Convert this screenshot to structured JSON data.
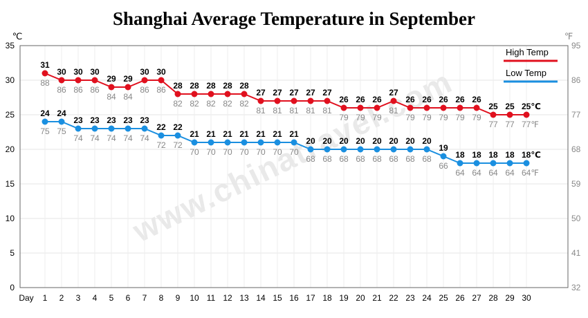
{
  "chart_data": {
    "type": "line",
    "title": "Shanghai Average Temperature in September",
    "x_label": "Day",
    "x": [
      1,
      2,
      3,
      4,
      5,
      6,
      7,
      8,
      9,
      10,
      11,
      12,
      13,
      14,
      15,
      16,
      17,
      18,
      19,
      20,
      21,
      22,
      23,
      24,
      25,
      26,
      27,
      28,
      29,
      30
    ],
    "y_left": {
      "unit": "℃",
      "min": 0,
      "max": 35,
      "ticks": [
        0,
        5,
        10,
        15,
        20,
        25,
        30,
        35
      ]
    },
    "y_right": {
      "unit": "℉",
      "ticks": [
        32,
        41,
        50,
        59,
        68,
        77,
        86,
        95
      ]
    },
    "grid": true,
    "legend_position": "top-right",
    "series": [
      {
        "name": "High Temp",
        "color": "#e0101e",
        "values_c": [
          31,
          30,
          30,
          30,
          29,
          29,
          30,
          30,
          28,
          28,
          28,
          28,
          28,
          27,
          27,
          27,
          27,
          27,
          26,
          26,
          26,
          27,
          26,
          26,
          26,
          26,
          26,
          25,
          25,
          25
        ],
        "values_f": [
          88,
          86,
          86,
          86,
          84,
          84,
          86,
          86,
          82,
          82,
          82,
          82,
          82,
          81,
          81,
          81,
          81,
          81,
          79,
          79,
          79,
          81,
          79,
          79,
          79,
          79,
          79,
          77,
          77,
          77
        ],
        "end_unit_c": "℃",
        "end_unit_f": "℉"
      },
      {
        "name": "Low Temp",
        "color": "#1a8fe0",
        "values_c": [
          24,
          24,
          23,
          23,
          23,
          23,
          23,
          22,
          22,
          21,
          21,
          21,
          21,
          21,
          21,
          21,
          20,
          20,
          20,
          20,
          20,
          20,
          20,
          20,
          19,
          18,
          18,
          18,
          18,
          18
        ],
        "values_f": [
          75,
          75,
          74,
          74,
          74,
          74,
          74,
          72,
          72,
          70,
          70,
          70,
          70,
          70,
          70,
          70,
          68,
          68,
          68,
          68,
          68,
          68,
          68,
          68,
          66,
          64,
          64,
          64,
          64,
          64
        ],
        "end_unit_c": "℃",
        "end_unit_f": "℉"
      }
    ],
    "watermark": "www.chinatravel.com"
  }
}
